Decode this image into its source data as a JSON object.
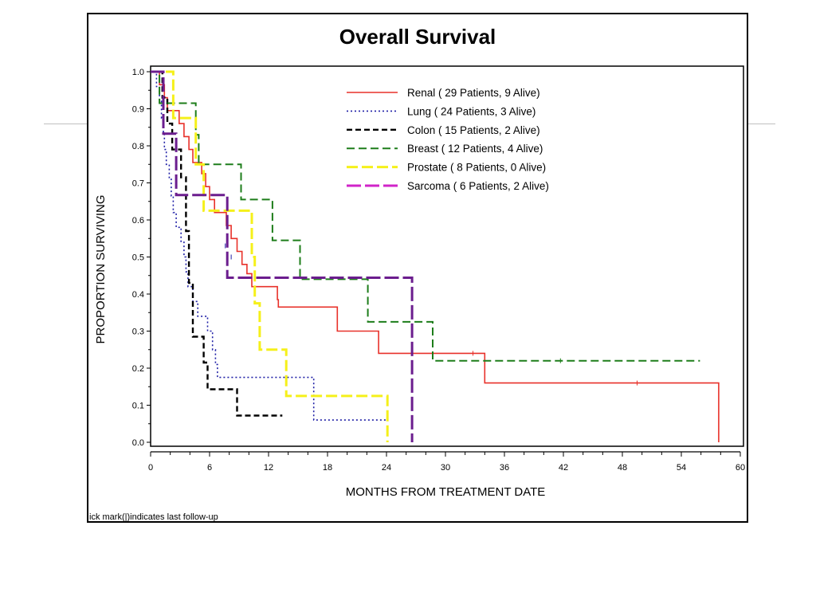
{
  "chart_data": {
    "type": "line",
    "title": "Overall Survival",
    "xlabel": "MONTHS FROM TREATMENT DATE",
    "ylabel": "PROPORTION SURVIVING",
    "xlim": [
      0,
      60
    ],
    "ylim": [
      0,
      1
    ],
    "xticks": [
      0,
      6,
      12,
      18,
      24,
      30,
      36,
      42,
      48,
      54,
      60
    ],
    "yticks": [
      "0.0",
      "0.1",
      "0.2",
      "0.3",
      "0.4",
      "0.5",
      "0.6",
      "0.7",
      "0.8",
      "0.9",
      "1.0"
    ],
    "footnote": "ick mark(|)indicates last follow-up",
    "series": [
      {
        "name": "Renal",
        "legend_label": "Renal ( 29 Patients,    9 Alive)",
        "color": "#e8312a",
        "dash": "",
        "width": 1.6,
        "steps": [
          [
            0,
            1.0
          ],
          [
            0.9,
            0.965
          ],
          [
            1.4,
            0.93
          ],
          [
            1.7,
            0.895
          ],
          [
            2.9,
            0.86
          ],
          [
            3.4,
            0.825
          ],
          [
            3.9,
            0.79
          ],
          [
            4.3,
            0.755
          ],
          [
            5.2,
            0.725
          ],
          [
            5.6,
            0.69
          ],
          [
            6.0,
            0.655
          ],
          [
            6.5,
            0.62
          ],
          [
            7.7,
            0.585
          ],
          [
            8.2,
            0.55
          ],
          [
            8.8,
            0.515
          ],
          [
            9.3,
            0.48
          ],
          [
            9.8,
            0.455
          ],
          [
            10.3,
            0.42
          ],
          [
            12.9,
            0.385
          ],
          [
            13.0,
            0.365
          ],
          [
            19.0,
            0.3
          ],
          [
            23.2,
            0.24
          ],
          [
            34.0,
            0.16
          ],
          [
            57.8,
            0.16
          ],
          [
            57.8,
            0.0
          ]
        ],
        "censor": [
          [
            32.8,
            0.24
          ],
          [
            49.5,
            0.16
          ]
        ]
      },
      {
        "name": "Lung",
        "legend_label": "Lung ( 24 Patients,    3 Alive)",
        "color": "#1f1fa6",
        "dash": "2,3",
        "width": 1.6,
        "steps": [
          [
            0,
            1.0
          ],
          [
            0.6,
            0.96
          ],
          [
            0.9,
            0.92
          ],
          [
            1.1,
            0.875
          ],
          [
            1.3,
            0.835
          ],
          [
            1.4,
            0.79
          ],
          [
            1.6,
            0.75
          ],
          [
            1.9,
            0.71
          ],
          [
            2.1,
            0.665
          ],
          [
            2.3,
            0.62
          ],
          [
            2.6,
            0.58
          ],
          [
            3.1,
            0.54
          ],
          [
            3.4,
            0.5
          ],
          [
            3.6,
            0.46
          ],
          [
            3.8,
            0.42
          ],
          [
            4.3,
            0.38
          ],
          [
            4.8,
            0.34
          ],
          [
            5.8,
            0.3
          ],
          [
            6.3,
            0.25
          ],
          [
            6.6,
            0.21
          ],
          [
            6.8,
            0.175
          ],
          [
            16.6,
            0.06
          ],
          [
            24.2,
            0.06
          ]
        ],
        "censor": [
          [
            7.6,
            0.53
          ],
          [
            8.2,
            0.5
          ]
        ]
      },
      {
        "name": "Colon",
        "legend_label": "Colon ( 15 Patients,    2 Alive)",
        "color": "#000000",
        "dash": "7,4",
        "width": 2.4,
        "steps": [
          [
            0,
            1.0
          ],
          [
            1.2,
            0.93
          ],
          [
            1.7,
            0.86
          ],
          [
            2.2,
            0.79
          ],
          [
            3.1,
            0.715
          ],
          [
            3.6,
            0.57
          ],
          [
            3.9,
            0.43
          ],
          [
            4.3,
            0.285
          ],
          [
            5.4,
            0.215
          ],
          [
            5.8,
            0.143
          ],
          [
            8.8,
            0.072
          ],
          [
            13.4,
            0.072
          ]
        ],
        "censor": []
      },
      {
        "name": "Breast",
        "legend_label": "Breast ( 12 Patients,    4 Alive)",
        "color": "#1d7d1a",
        "dash": "10,5",
        "width": 2,
        "steps": [
          [
            0,
            1.0
          ],
          [
            0.9,
            0.915
          ],
          [
            4.6,
            0.83
          ],
          [
            4.9,
            0.75
          ],
          [
            9.2,
            0.655
          ],
          [
            12.4,
            0.545
          ],
          [
            15.2,
            0.44
          ],
          [
            22.1,
            0.325
          ],
          [
            28.7,
            0.22
          ],
          [
            55.9,
            0.22
          ]
        ],
        "censor": [
          [
            41.7,
            0.22
          ]
        ]
      },
      {
        "name": "Prostate",
        "legend_label": "Prostate (   8 Patients,    0 Alive)",
        "color": "#f5f01a",
        "dash": "14,5",
        "width": 3,
        "steps": [
          [
            0,
            1.0
          ],
          [
            2.3,
            0.875
          ],
          [
            4.6,
            0.75
          ],
          [
            5.4,
            0.625
          ],
          [
            10.3,
            0.5
          ],
          [
            10.6,
            0.375
          ],
          [
            11.1,
            0.25
          ],
          [
            13.8,
            0.125
          ],
          [
            24.1,
            0.125
          ],
          [
            24.1,
            0.0
          ]
        ],
        "censor": []
      },
      {
        "name": "Sarcoma",
        "legend_label": "Sarcoma (   6 Patients,    2 Alive)",
        "color": "#6b1d8e",
        "legend_color": "#d024c8",
        "dash": "18,5",
        "width": 3,
        "steps": [
          [
            0,
            1.0
          ],
          [
            1.3,
            0.833
          ],
          [
            2.6,
            0.667
          ],
          [
            7.8,
            0.444
          ],
          [
            26.6,
            0.444
          ],
          [
            26.6,
            0.0
          ]
        ],
        "censor": []
      }
    ]
  }
}
